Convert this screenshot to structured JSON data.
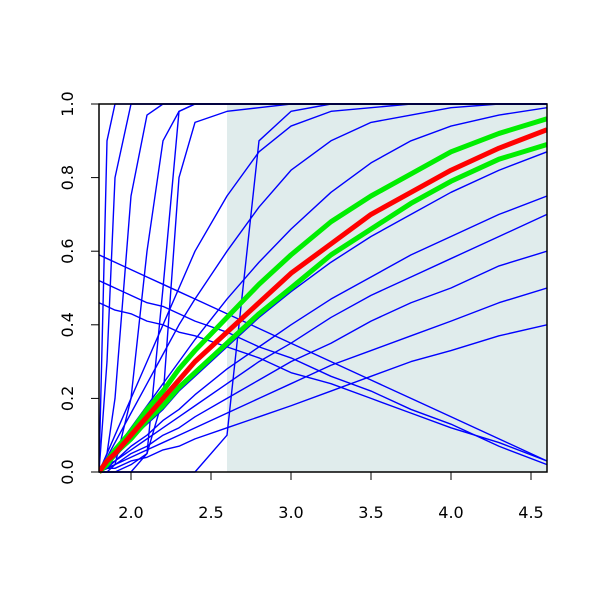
{
  "chart_data": {
    "type": "line",
    "x": [
      1.8,
      1.85,
      1.9,
      2.0,
      2.1,
      2.2,
      2.3,
      2.4,
      2.6,
      2.8,
      3.0,
      3.25,
      3.5,
      3.75,
      4.0,
      4.3,
      4.6
    ],
    "xlim": [
      1.8,
      4.6
    ],
    "ylim": [
      0,
      1
    ],
    "xticks": [
      {
        "value": 2,
        "label": "2.0"
      },
      {
        "value": 2.5,
        "label": "2.5"
      },
      {
        "value": 3,
        "label": "3.0"
      },
      {
        "value": 3.5,
        "label": "3.5"
      },
      {
        "value": 4,
        "label": "4.0"
      },
      {
        "value": 4.5,
        "label": "4.5"
      }
    ],
    "yticks": [
      {
        "value": 0,
        "label": "0.0"
      },
      {
        "value": 0.2,
        "label": "0.2"
      },
      {
        "value": 0.4,
        "label": "0.4"
      },
      {
        "value": 0.6,
        "label": "0.6"
      },
      {
        "value": 0.8,
        "label": "0.8"
      },
      {
        "value": 1,
        "label": "1.0"
      }
    ],
    "shaded_region": {
      "x": [
        2.6,
        4.6
      ],
      "color": "#e0ecec"
    },
    "series": [
      {
        "color": "#0000ff",
        "lwd": 1.4,
        "values": [
          0,
          0.9,
          1,
          1,
          1,
          1,
          1,
          1,
          1,
          1,
          1,
          1,
          1,
          1,
          1,
          1,
          1
        ]
      },
      {
        "color": "#0000ff",
        "lwd": 1.4,
        "values": [
          0,
          0.3,
          0.8,
          1,
          1,
          1,
          1,
          1,
          1,
          1,
          1,
          1,
          1,
          1,
          1,
          1,
          1
        ]
      },
      {
        "color": "#0000ff",
        "lwd": 1.4,
        "values": [
          0,
          0.05,
          0.2,
          0.75,
          0.97,
          1,
          1,
          1,
          1,
          1,
          1,
          1,
          1,
          1,
          1,
          1,
          1
        ]
      },
      {
        "color": "#0000ff",
        "lwd": 1.4,
        "values": [
          0,
          0,
          0.02,
          0.2,
          0.6,
          0.9,
          0.98,
          1,
          1,
          1,
          1,
          1,
          1,
          1,
          1,
          1,
          1
        ]
      },
      {
        "color": "#0000ff",
        "lwd": 1.4,
        "values": [
          0,
          0,
          0,
          0,
          0.05,
          0.5,
          0.98,
          1,
          1,
          1,
          1,
          1,
          1,
          1,
          1,
          1,
          1
        ]
      },
      {
        "color": "#0000ff",
        "lwd": 1.4,
        "values": [
          0,
          0,
          0,
          0.02,
          0.05,
          0.2,
          0.8,
          0.95,
          0.98,
          0.99,
          1,
          1,
          1,
          1,
          1,
          1,
          1
        ]
      },
      {
        "color": "#0000ff",
        "lwd": 1.4,
        "values": [
          0,
          0,
          0,
          0,
          0,
          0,
          0,
          0,
          0.1,
          0.9,
          0.98,
          1,
          1,
          1,
          1,
          1,
          1
        ]
      },
      {
        "color": "#0000ff",
        "lwd": 1.4,
        "values": [
          0,
          0.05,
          0.1,
          0.2,
          0.3,
          0.4,
          0.5,
          0.6,
          0.75,
          0.87,
          0.94,
          0.98,
          0.99,
          1,
          1,
          1,
          1
        ]
      },
      {
        "color": "#0000ff",
        "lwd": 1.4,
        "values": [
          0,
          0.04,
          0.08,
          0.16,
          0.24,
          0.32,
          0.4,
          0.47,
          0.6,
          0.72,
          0.82,
          0.9,
          0.95,
          0.97,
          0.99,
          1,
          1
        ]
      },
      {
        "color": "#0000ff",
        "lwd": 1.4,
        "values": [
          0,
          0.03,
          0.06,
          0.12,
          0.18,
          0.24,
          0.3,
          0.36,
          0.47,
          0.57,
          0.66,
          0.76,
          0.84,
          0.9,
          0.94,
          0.97,
          0.99
        ]
      },
      {
        "color": "#0000ff",
        "lwd": 1.4,
        "values": [
          0,
          0.02,
          0.04,
          0.09,
          0.13,
          0.17,
          0.22,
          0.26,
          0.34,
          0.42,
          0.49,
          0.57,
          0.64,
          0.7,
          0.76,
          0.82,
          0.87
        ]
      },
      {
        "color": "#0000ff",
        "lwd": 1.4,
        "values": [
          0,
          0.02,
          0.03,
          0.07,
          0.1,
          0.14,
          0.17,
          0.21,
          0.28,
          0.34,
          0.4,
          0.47,
          0.53,
          0.59,
          0.64,
          0.7,
          0.75
        ]
      },
      {
        "color": "#0000ff",
        "lwd": 1.4,
        "values": [
          0,
          0.01,
          0.03,
          0.06,
          0.09,
          0.12,
          0.15,
          0.18,
          0.24,
          0.3,
          0.35,
          0.42,
          0.48,
          0.53,
          0.58,
          0.64,
          0.7
        ]
      },
      {
        "color": "#0000ff",
        "lwd": 1.4,
        "values": [
          0,
          0.01,
          0.02,
          0.05,
          0.07,
          0.1,
          0.12,
          0.15,
          0.2,
          0.25,
          0.3,
          0.35,
          0.41,
          0.46,
          0.5,
          0.56,
          0.6
        ]
      },
      {
        "color": "#0000ff",
        "lwd": 1.4,
        "values": [
          0,
          0.01,
          0.02,
          0.04,
          0.06,
          0.08,
          0.1,
          0.12,
          0.16,
          0.2,
          0.24,
          0.29,
          0.33,
          0.37,
          0.41,
          0.46,
          0.5
        ]
      },
      {
        "color": "#0000ff",
        "lwd": 1.4,
        "values": [
          0,
          0.01,
          0.01,
          0.03,
          0.04,
          0.06,
          0.07,
          0.09,
          0.12,
          0.15,
          0.18,
          0.22,
          0.26,
          0.3,
          0.33,
          0.37,
          0.4
        ]
      },
      {
        "color": "#0000ff",
        "lwd": 1.4,
        "values": [
          0.59,
          0.58,
          0.57,
          0.55,
          0.53,
          0.51,
          0.49,
          0.47,
          0.43,
          0.39,
          0.35,
          0.3,
          0.25,
          0.2,
          0.15,
          0.09,
          0.03
        ]
      },
      {
        "color": "#0000ff",
        "lwd": 1.4,
        "values": [
          0.52,
          0.51,
          0.5,
          0.48,
          0.46,
          0.45,
          0.43,
          0.41,
          0.38,
          0.34,
          0.31,
          0.26,
          0.22,
          0.17,
          0.13,
          0.07,
          0.02
        ]
      },
      {
        "color": "#0000ff",
        "lwd": 1.4,
        "values": [
          0.46,
          0.45,
          0.44,
          0.43,
          0.41,
          0.4,
          0.38,
          0.37,
          0.34,
          0.31,
          0.27,
          0.24,
          0.2,
          0.16,
          0.12,
          0.08,
          0.03
        ]
      },
      {
        "color": "#00ee00",
        "lwd": 5,
        "values": [
          0,
          0.03,
          0.06,
          0.11,
          0.17,
          0.22,
          0.28,
          0.33,
          0.42,
          0.51,
          0.59,
          0.68,
          0.75,
          0.81,
          0.87,
          0.92,
          0.96
        ]
      },
      {
        "color": "#00ee00",
        "lwd": 5,
        "values": [
          0,
          0.02,
          0.05,
          0.09,
          0.14,
          0.18,
          0.23,
          0.27,
          0.35,
          0.43,
          0.5,
          0.59,
          0.66,
          0.73,
          0.79,
          0.85,
          0.89
        ]
      },
      {
        "color": "#ff0000",
        "lwd": 5,
        "values": [
          0,
          0.03,
          0.05,
          0.1,
          0.15,
          0.2,
          0.25,
          0.3,
          0.38,
          0.46,
          0.54,
          0.62,
          0.7,
          0.76,
          0.82,
          0.88,
          0.93
        ]
      }
    ]
  }
}
